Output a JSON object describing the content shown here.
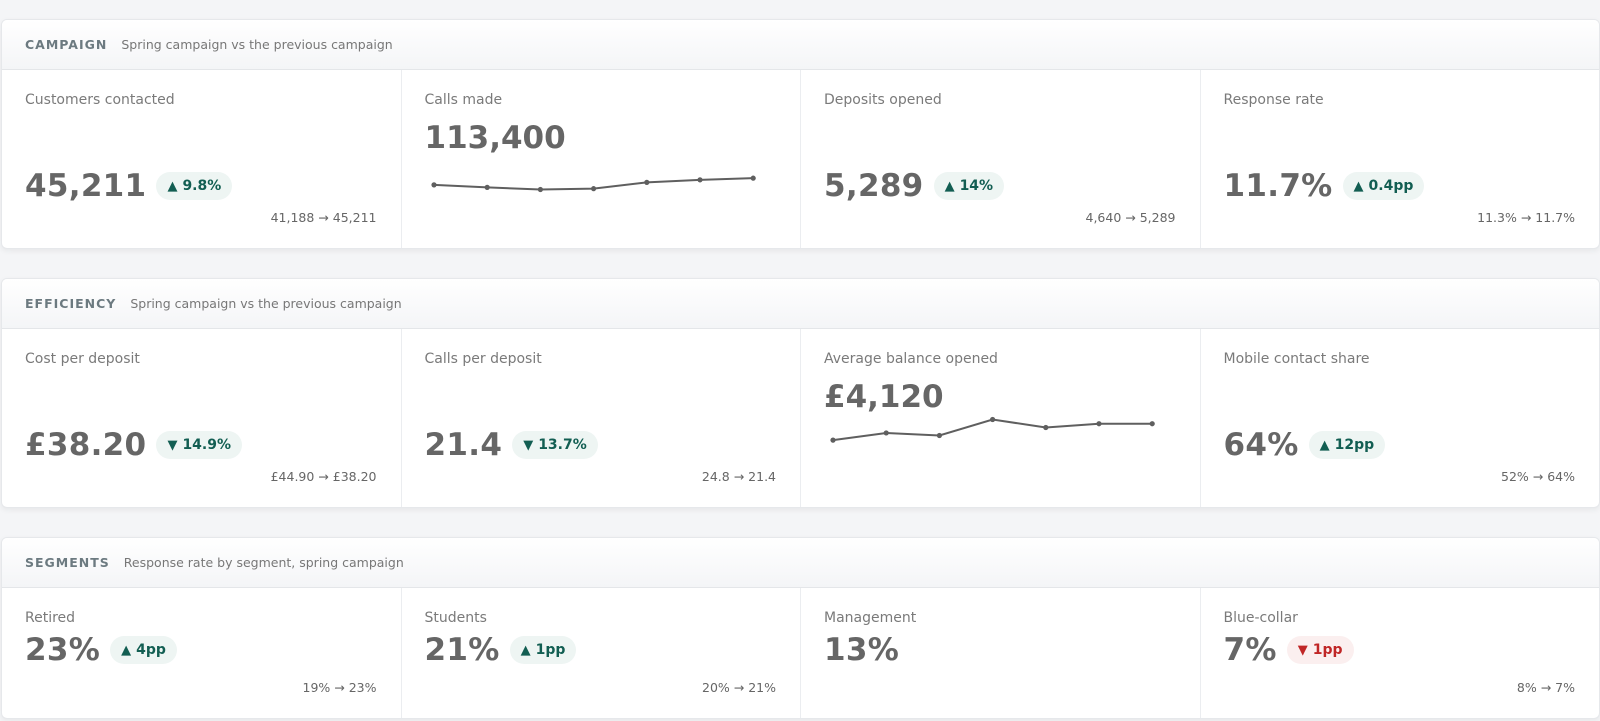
{
  "campaign": {
    "title": "CAMPAIGN",
    "subtitle": "Spring campaign vs the previous campaign",
    "cards": [
      {
        "label": "Customers contacted",
        "value": "45,211",
        "delta": "9.8%",
        "compare": "41,188 → 45,211"
      },
      {
        "label": "Calls made",
        "value": "113,400",
        "spark": [
          0.36,
          0.3,
          0.25,
          0.27,
          0.42,
          0.48,
          0.52
        ]
      },
      {
        "label": "Deposits opened",
        "value": "5,289",
        "delta": "14%",
        "compare": "4,640 → 5,289"
      },
      {
        "label": "Response rate",
        "value": "11.7%",
        "delta": "0.4pp",
        "compare": "11.3% → 11.7%"
      }
    ]
  },
  "efficiency": {
    "title": "EFFICIENCY",
    "subtitle": "Spring campaign vs the previous campaign",
    "cards": [
      {
        "label": "Cost per deposit",
        "value": "£38.20",
        "delta": "14.9%",
        "compare": "£44.90 → £38.20"
      },
      {
        "label": "Calls per deposit",
        "value": "21.4",
        "delta": "13.7%",
        "compare": "24.8 → 21.4"
      },
      {
        "label": "Average balance opened",
        "value": "£4,120",
        "spark": [
          0.45,
          0.62,
          0.56,
          0.94,
          0.75,
          0.84,
          0.84
        ]
      },
      {
        "label": "Mobile contact share",
        "value": "64%",
        "delta": "12pp",
        "compare": "52% → 64%"
      }
    ]
  },
  "segments": {
    "title": "SEGMENTS",
    "subtitle": "Response rate by segment, spring campaign",
    "cards": [
      {
        "label": "Retired",
        "value": "23%",
        "delta": "4pp",
        "compare": "19% → 23%"
      },
      {
        "label": "Students",
        "value": "21%",
        "delta": "1pp",
        "compare": "20% → 21%"
      },
      {
        "label": "Management",
        "value": "13%"
      },
      {
        "label": "Blue-collar",
        "value": "7%",
        "delta": "1pp",
        "compare": "8% → 7%"
      }
    ]
  },
  "icons": {
    "up": "triangle-up-icon",
    "down": "triangle-down-icon"
  },
  "colors": {
    "good": "#125e52",
    "bad": "#c02626",
    "spark_line": "#5f5f5f"
  }
}
